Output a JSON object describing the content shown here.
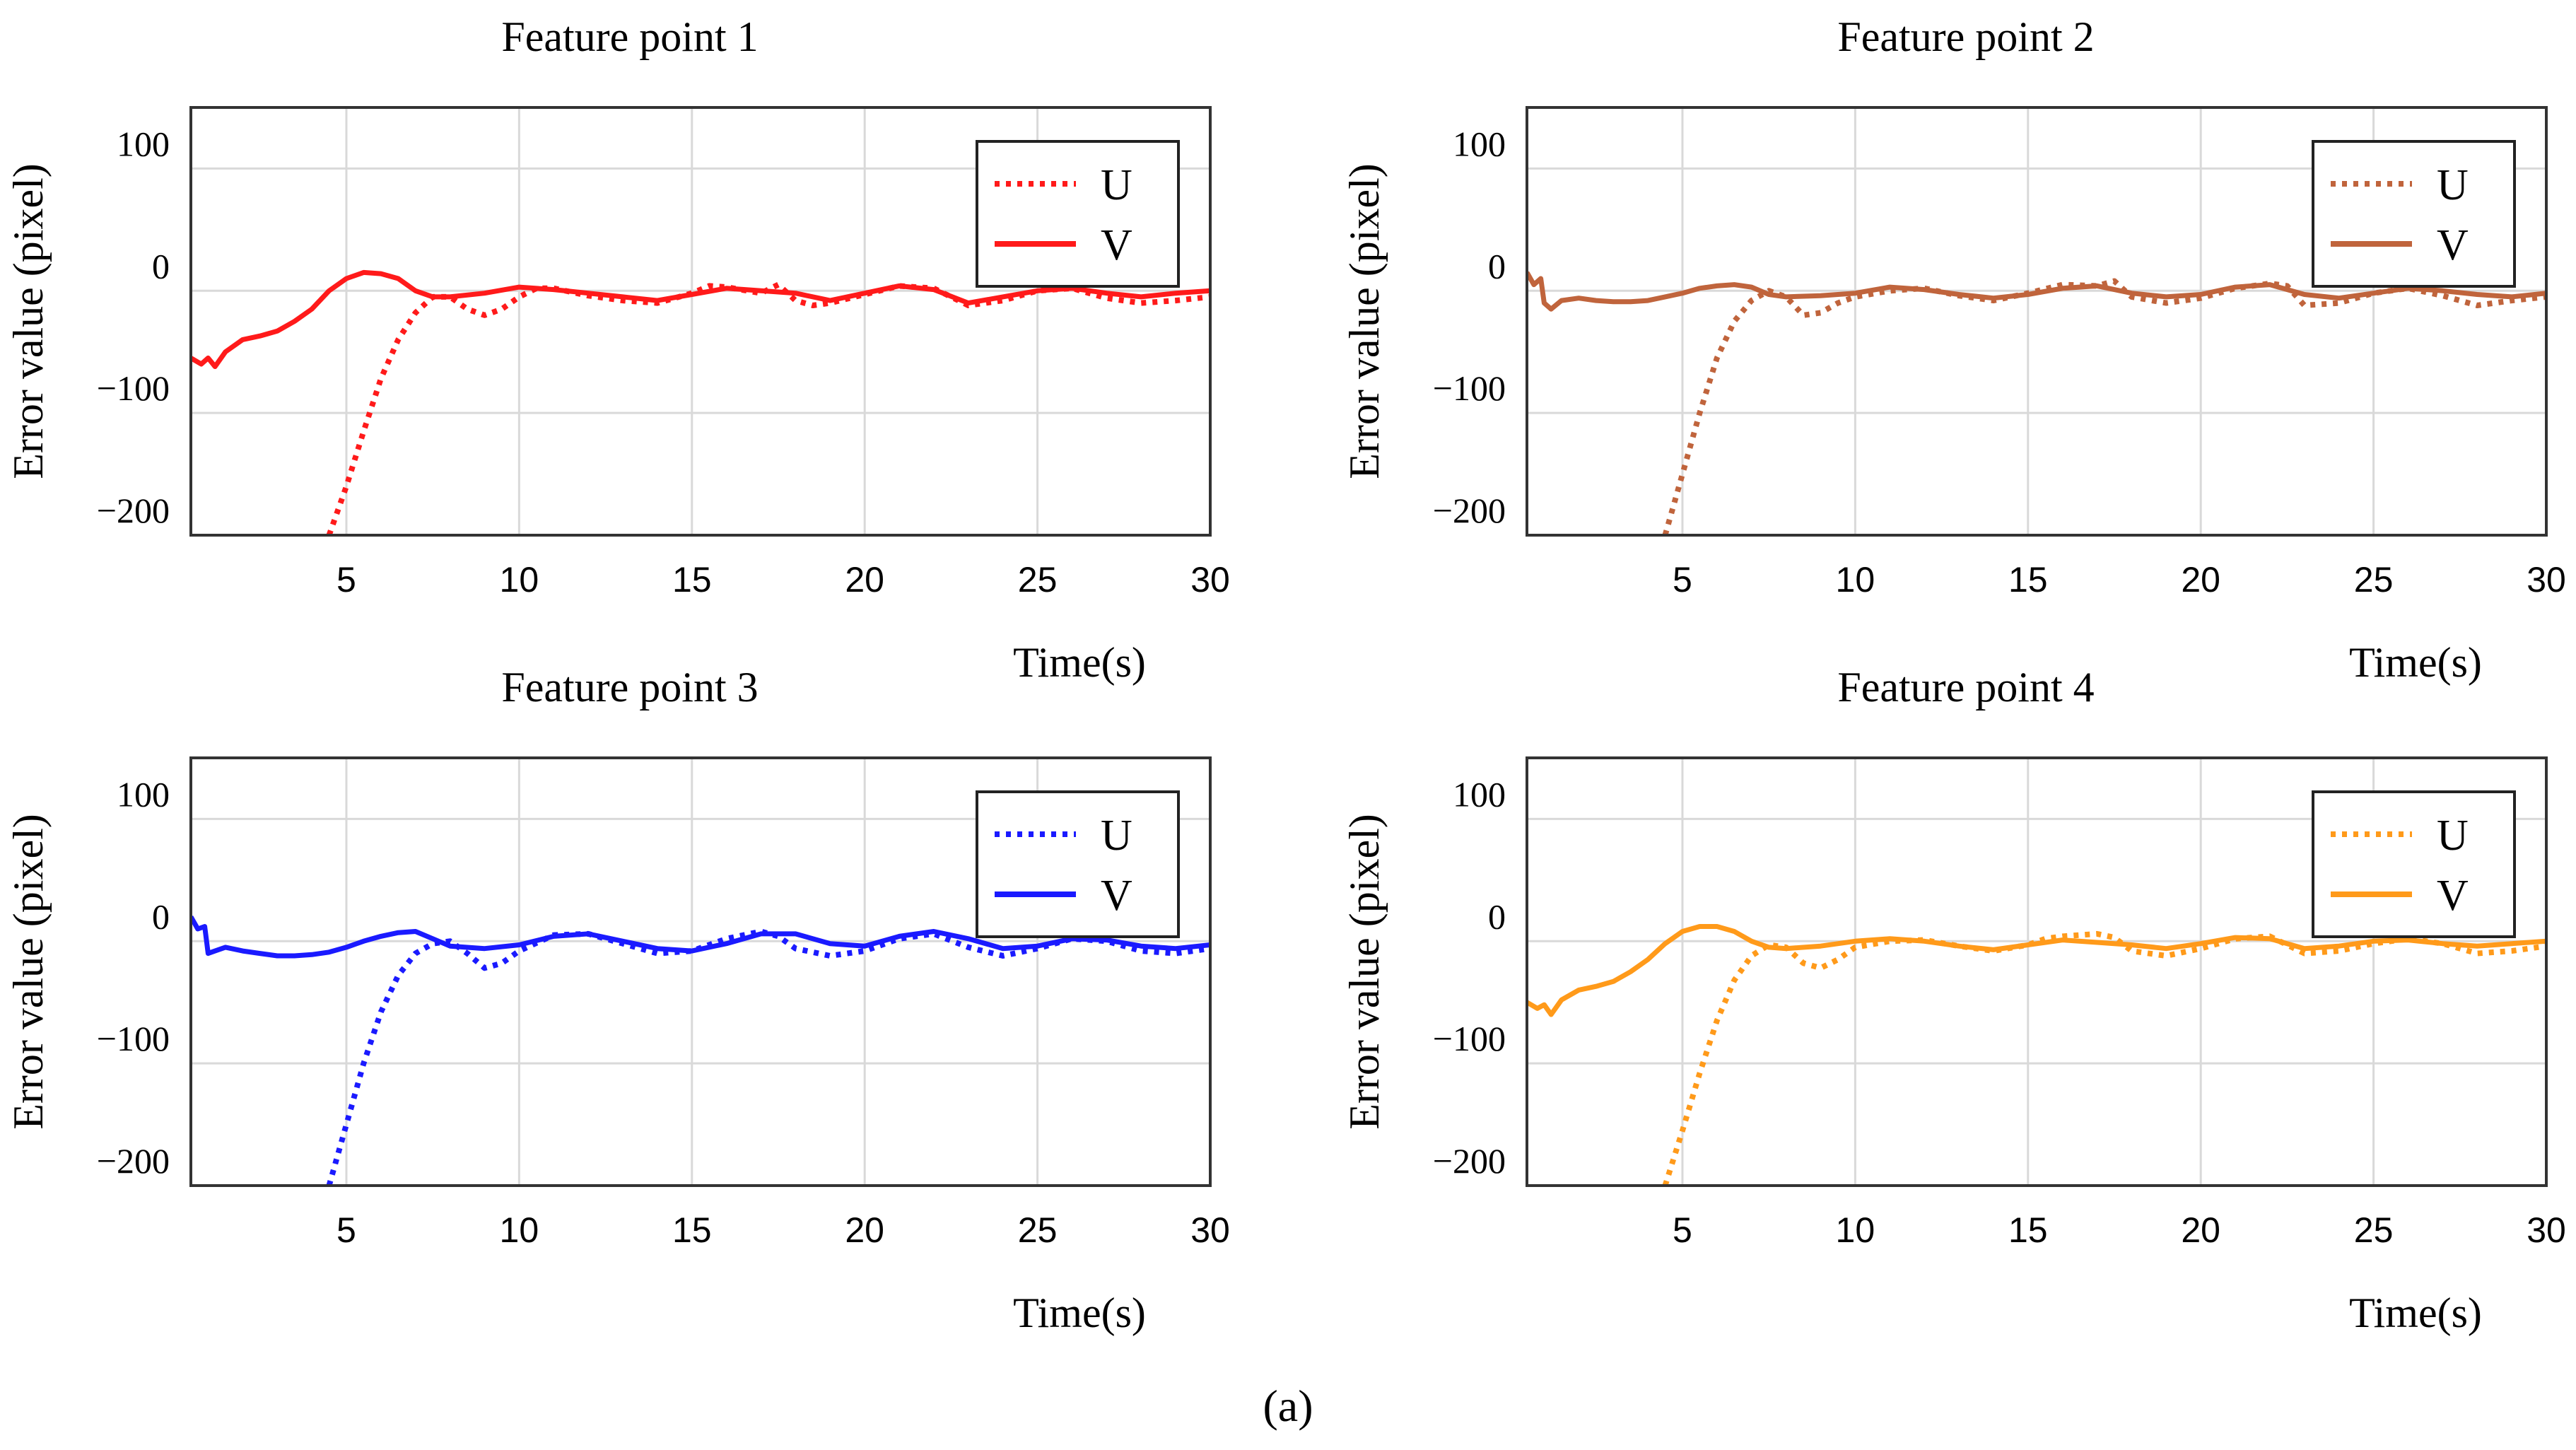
{
  "figure": {
    "label": "(a)",
    "xlabel": "Time(s)",
    "ylabel": "Error value (pixel)",
    "legend_labels": [
      "U",
      "V"
    ]
  },
  "chart_data": [
    {
      "type": "line",
      "title": "Feature point 1",
      "color": "#ff1a1a",
      "xlabel": "Time(s)",
      "ylabel": "Error value (pixel)",
      "xlim": [
        0.5,
        30
      ],
      "ylim": [
        -200,
        150
      ],
      "xticks": [
        5,
        10,
        15,
        20,
        25,
        30
      ],
      "yticks": [
        -200,
        -100,
        0,
        100
      ],
      "grid": true,
      "legend_position": "top-right",
      "series": [
        {
          "name": "U",
          "style": "dotted",
          "x": [
            4.5,
            5,
            5.5,
            6,
            6.5,
            7,
            7.5,
            8,
            8.5,
            9,
            9.5,
            10,
            10.5,
            11,
            12,
            13,
            14,
            15,
            15.5,
            16,
            17,
            17.5,
            18,
            18.5,
            19,
            20,
            21,
            22,
            23,
            24,
            25,
            26,
            27,
            28,
            29,
            30
          ],
          "y": [
            -200,
            -160,
            -115,
            -72,
            -40,
            -18,
            -5,
            -5,
            -15,
            -20,
            -15,
            -5,
            2,
            2,
            -4,
            -8,
            -10,
            -2,
            4,
            3,
            -2,
            5,
            -8,
            -12,
            -10,
            -3,
            4,
            2,
            -12,
            -8,
            0,
            2,
            -6,
            -10,
            -8,
            -5
          ]
        },
        {
          "name": "V",
          "style": "solid",
          "x": [
            0.5,
            0.8,
            1,
            1.2,
            1.5,
            2,
            2.5,
            3,
            3.5,
            4,
            4.5,
            5,
            5.5,
            6,
            6.5,
            7,
            7.5,
            8,
            9,
            10,
            11,
            12,
            13,
            14,
            15,
            16,
            17,
            18,
            19,
            20,
            21,
            22,
            23,
            24,
            25,
            26,
            27,
            28,
            29,
            30
          ],
          "y": [
            -55,
            -60,
            -55,
            -62,
            -50,
            -40,
            -37,
            -33,
            -25,
            -15,
            0,
            10,
            15,
            14,
            10,
            0,
            -5,
            -5,
            -2,
            3,
            1,
            -2,
            -5,
            -8,
            -3,
            2,
            0,
            -2,
            -8,
            -2,
            4,
            1,
            -10,
            -5,
            0,
            2,
            -2,
            -5,
            -2,
            0
          ]
        }
      ]
    },
    {
      "type": "line",
      "title": "Feature point 2",
      "color": "#c0643c",
      "xlabel": "Time(s)",
      "ylabel": "Error value (pixel)",
      "xlim": [
        0.5,
        30
      ],
      "ylim": [
        -200,
        150
      ],
      "xticks": [
        5,
        10,
        15,
        20,
        25,
        30
      ],
      "yticks": [
        -200,
        -100,
        0,
        100
      ],
      "grid": true,
      "legend_position": "top-right",
      "series": [
        {
          "name": "U",
          "style": "dotted",
          "x": [
            4.5,
            5,
            5.5,
            6,
            6.5,
            7,
            7.5,
            8,
            8.5,
            9,
            9.5,
            10,
            11,
            12,
            13,
            14,
            15,
            16,
            17,
            17.5,
            18,
            19,
            20,
            21,
            22,
            22.5,
            23,
            24,
            25,
            26,
            27,
            28,
            29,
            30
          ],
          "y": [
            -200,
            -150,
            -100,
            -55,
            -25,
            -8,
            0,
            -5,
            -20,
            -18,
            -10,
            -5,
            0,
            2,
            -4,
            -8,
            -2,
            5,
            4,
            8,
            -5,
            -10,
            -6,
            2,
            6,
            4,
            -12,
            -10,
            -2,
            2,
            -4,
            -12,
            -8,
            -5
          ]
        },
        {
          "name": "V",
          "style": "solid",
          "x": [
            0.5,
            0.7,
            0.9,
            1,
            1.2,
            1.5,
            2,
            2.5,
            3,
            3.5,
            4,
            4.5,
            5,
            5.5,
            6,
            6.5,
            7,
            7.5,
            8,
            9,
            10,
            11,
            12,
            13,
            14,
            15,
            16,
            17,
            18,
            19,
            20,
            21,
            22,
            23,
            24,
            25,
            26,
            27,
            28,
            29,
            30
          ],
          "y": [
            15,
            5,
            10,
            -10,
            -15,
            -8,
            -6,
            -8,
            -9,
            -9,
            -8,
            -5,
            -2,
            2,
            4,
            5,
            3,
            -3,
            -5,
            -4,
            -2,
            3,
            1,
            -3,
            -6,
            -3,
            2,
            4,
            -2,
            -5,
            -3,
            3,
            5,
            -3,
            -6,
            -2,
            2,
            0,
            -3,
            -5,
            -2
          ]
        }
      ]
    },
    {
      "type": "line",
      "title": "Feature point 3",
      "color": "#1a1aff",
      "xlabel": "Time(s)",
      "ylabel": "Error value (pixel)",
      "xlim": [
        0.5,
        30
      ],
      "ylim": [
        -200,
        150
      ],
      "xticks": [
        5,
        10,
        15,
        20,
        25,
        30
      ],
      "yticks": [
        -200,
        -100,
        0,
        100
      ],
      "grid": true,
      "legend_position": "top-right",
      "series": [
        {
          "name": "U",
          "style": "dotted",
          "x": [
            4.5,
            5,
            5.5,
            6,
            6.5,
            7,
            7.5,
            8,
            8.5,
            9,
            9.5,
            10,
            11,
            12,
            13,
            14,
            15,
            16,
            17,
            17.5,
            18,
            19,
            20,
            21,
            22,
            23,
            24,
            25,
            26,
            27,
            28,
            29,
            30
          ],
          "y": [
            -200,
            -150,
            -100,
            -58,
            -28,
            -10,
            -2,
            0,
            -10,
            -22,
            -18,
            -8,
            5,
            6,
            -2,
            -10,
            -8,
            2,
            8,
            4,
            -6,
            -12,
            -8,
            2,
            6,
            -5,
            -12,
            -6,
            2,
            0,
            -8,
            -10,
            -6
          ]
        },
        {
          "name": "V",
          "style": "solid",
          "x": [
            0.5,
            0.7,
            0.9,
            1,
            1.2,
            1.5,
            2,
            2.5,
            3,
            3.5,
            4,
            4.5,
            5,
            5.5,
            6,
            6.5,
            7,
            7.5,
            8,
            9,
            10,
            11,
            12,
            13,
            14,
            15,
            16,
            17,
            18,
            19,
            20,
            21,
            22,
            23,
            24,
            25,
            26,
            27,
            28,
            29,
            30
          ],
          "y": [
            20,
            10,
            12,
            -10,
            -8,
            -5,
            -8,
            -10,
            -12,
            -12,
            -11,
            -9,
            -5,
            0,
            4,
            7,
            8,
            2,
            -4,
            -6,
            -3,
            4,
            6,
            0,
            -6,
            -8,
            -2,
            6,
            6,
            -2,
            -4,
            4,
            8,
            2,
            -6,
            -4,
            2,
            1,
            -4,
            -6,
            -3
          ]
        }
      ]
    },
    {
      "type": "line",
      "title": "Feature point 4",
      "color": "#ff9a1a",
      "xlabel": "Time(s)",
      "ylabel": "Error value (pixel)",
      "xlim": [
        0.5,
        30
      ],
      "ylim": [
        -200,
        150
      ],
      "xticks": [
        5,
        10,
        15,
        20,
        25,
        30
      ],
      "yticks": [
        -200,
        -100,
        0,
        100
      ],
      "grid": true,
      "legend_position": "top-right",
      "series": [
        {
          "name": "U",
          "style": "dotted",
          "x": [
            4.5,
            5,
            5.5,
            6,
            6.5,
            7,
            7.5,
            8,
            8.5,
            9,
            9.5,
            10,
            11,
            12,
            13,
            14,
            15,
            15.5,
            16,
            17,
            17.5,
            18,
            19,
            20,
            21,
            22,
            23,
            24,
            25,
            26,
            27,
            28,
            29,
            30
          ],
          "y": [
            -200,
            -155,
            -108,
            -65,
            -32,
            -12,
            -3,
            -5,
            -18,
            -22,
            -15,
            -5,
            0,
            1,
            -4,
            -8,
            -3,
            2,
            4,
            6,
            3,
            -8,
            -12,
            -6,
            2,
            4,
            -10,
            -8,
            -2,
            2,
            -2,
            -10,
            -8,
            -4
          ]
        },
        {
          "name": "V",
          "style": "solid",
          "x": [
            0.5,
            0.8,
            1,
            1.2,
            1.5,
            2,
            2.5,
            3,
            3.5,
            4,
            4.5,
            5,
            5.5,
            6,
            6.5,
            7,
            7.5,
            8,
            9,
            10,
            11,
            12,
            13,
            14,
            15,
            16,
            17,
            18,
            19,
            20,
            21,
            22,
            23,
            24,
            25,
            26,
            27,
            28,
            29,
            30
          ],
          "y": [
            -50,
            -55,
            -52,
            -60,
            -48,
            -40,
            -37,
            -33,
            -25,
            -15,
            -2,
            8,
            12,
            12,
            8,
            0,
            -5,
            -6,
            -4,
            0,
            2,
            0,
            -4,
            -7,
            -3,
            1,
            -1,
            -3,
            -6,
            -2,
            3,
            2,
            -6,
            -4,
            0,
            1,
            -2,
            -4,
            -2,
            0
          ]
        }
      ]
    }
  ]
}
